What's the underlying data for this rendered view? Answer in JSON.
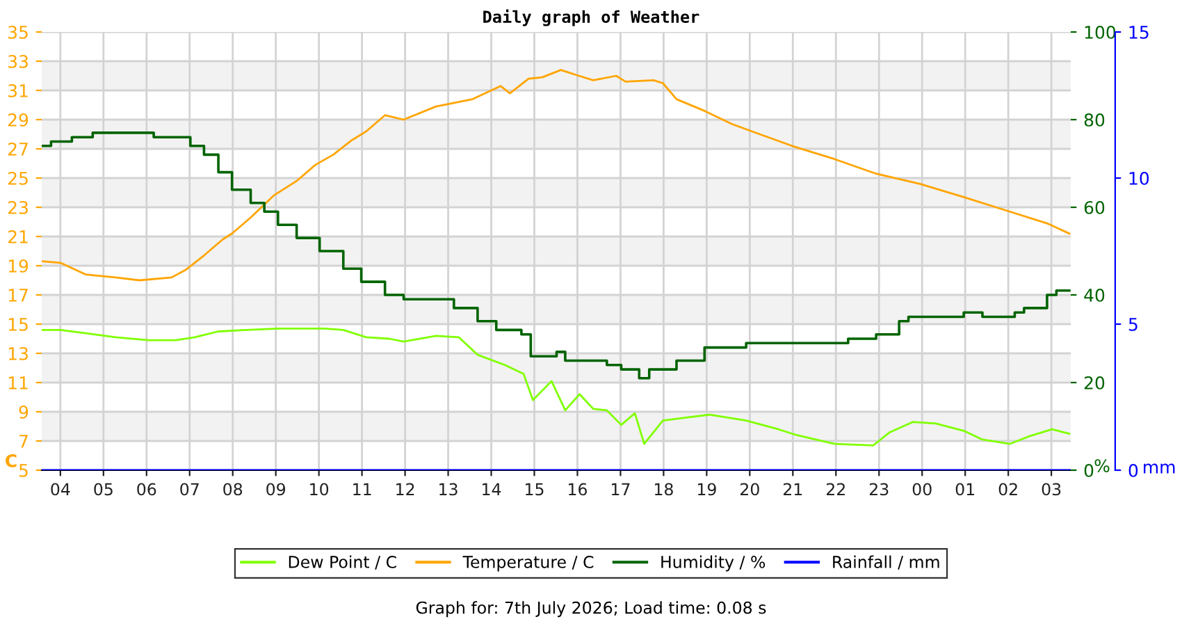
{
  "chart_data": {
    "type": "line",
    "title": "Daily graph of Weather",
    "ylabel": "C",
    "y2label": "%",
    "y3label": "mm",
    "annotations": [
      "Graph for: 7th July 2026; Load time: 0.08 s"
    ],
    "xlim": [
      "2026-07-06T03:34",
      "2026-07-07T03:27"
    ],
    "xticks": [
      {
        "value": "2026-07-06T04:00",
        "label": "04"
      },
      {
        "value": "2026-07-06T05:00",
        "label": "05"
      },
      {
        "value": "2026-07-06T06:00",
        "label": "06"
      },
      {
        "value": "2026-07-06T07:00",
        "label": "07"
      },
      {
        "value": "2026-07-06T08:00",
        "label": "08"
      },
      {
        "value": "2026-07-06T09:00",
        "label": "09"
      },
      {
        "value": "2026-07-06T10:00",
        "label": "10"
      },
      {
        "value": "2026-07-06T11:00",
        "label": "11"
      },
      {
        "value": "2026-07-06T12:00",
        "label": "12"
      },
      {
        "value": "2026-07-06T13:00",
        "label": "13"
      },
      {
        "value": "2026-07-06T14:00",
        "label": "14"
      },
      {
        "value": "2026-07-06T15:00",
        "label": "15"
      },
      {
        "value": "2026-07-06T16:00",
        "label": "16"
      },
      {
        "value": "2026-07-06T17:00",
        "label": "17"
      },
      {
        "value": "2026-07-06T18:00",
        "label": "18"
      },
      {
        "value": "2026-07-06T19:00",
        "label": "19"
      },
      {
        "value": "2026-07-06T20:00",
        "label": "20"
      },
      {
        "value": "2026-07-06T21:00",
        "label": "21"
      },
      {
        "value": "2026-07-06T22:00",
        "label": "22"
      },
      {
        "value": "2026-07-06T23:00",
        "label": "23"
      },
      {
        "value": "2026-07-07T00:00",
        "label": "00"
      },
      {
        "value": "2026-07-07T01:00",
        "label": "01"
      },
      {
        "value": "2026-07-07T02:00",
        "label": "02"
      },
      {
        "value": "2026-07-07T03:00",
        "label": "03"
      }
    ],
    "ylim": [
      5,
      35
    ],
    "yticks": [
      5,
      7,
      9,
      11,
      13,
      15,
      17,
      19,
      21,
      23,
      25,
      27,
      29,
      31,
      33,
      35
    ],
    "y2lim": [
      0,
      100
    ],
    "y2ticks": [
      0,
      20,
      40,
      60,
      80,
      100
    ],
    "y3lim": [
      0,
      15
    ],
    "y3ticks": [
      0,
      5,
      10,
      15
    ],
    "grid": true,
    "legend": "bottom",
    "series": [
      {
        "name": "Dew Point / C",
        "color": "#80ff00",
        "x": [
          "2026-07-06T03:35",
          "2026-07-06T04:00",
          "2026-07-06T04:32",
          "2026-07-06T05:17",
          "2026-07-06T06:03",
          "2026-07-06T06:41",
          "2026-07-06T07:07",
          "2026-07-06T07:40",
          "2026-07-06T08:19",
          "2026-07-06T09:04",
          "2026-07-06T10:08",
          "2026-07-06T10:34",
          "2026-07-06T11:06",
          "2026-07-06T11:38",
          "2026-07-06T11:58",
          "2026-07-06T12:43",
          "2026-07-06T13:15",
          "2026-07-06T13:41",
          "2026-07-06T14:19",
          "2026-07-06T14:45",
          "2026-07-06T14:58",
          "2026-07-06T15:24",
          "2026-07-06T15:43",
          "2026-07-06T16:03",
          "2026-07-06T16:22",
          "2026-07-06T16:41",
          "2026-07-06T17:01",
          "2026-07-06T17:20",
          "2026-07-06T17:33",
          "2026-07-06T17:59",
          "2026-07-06T18:31",
          "2026-07-06T19:04",
          "2026-07-06T19:55",
          "2026-07-06T20:40",
          "2026-07-06T20:59",
          "2026-07-06T21:06",
          "2026-07-06T21:58",
          "2026-07-06T22:52",
          "2026-07-06T23:15",
          "2026-07-06T23:47",
          "2026-07-07T00:19",
          "2026-07-07T00:58",
          "2026-07-07T01:24",
          "2026-07-07T02:02",
          "2026-07-07T02:28",
          "2026-07-07T03:01",
          "2026-07-07T03:25"
        ],
        "values": [
          14.6,
          14.6,
          14.4,
          14.1,
          13.9,
          13.9,
          14.1,
          14.5,
          14.6,
          14.7,
          14.7,
          14.6,
          14.1,
          14.0,
          13.8,
          14.2,
          14.1,
          12.9,
          12.2,
          11.6,
          9.8,
          11.1,
          9.1,
          10.2,
          9.2,
          9.1,
          8.1,
          8.9,
          6.8,
          8.4,
          8.6,
          8.8,
          8.4,
          7.8,
          7.5,
          7.4,
          6.8,
          6.7,
          7.6,
          8.3,
          8.2,
          7.7,
          7.1,
          6.8,
          7.3,
          7.8,
          7.5
        ]
      },
      {
        "name": "Temperature / C",
        "color": "#ffa500",
        "x": [
          "2026-07-06T03:35",
          "2026-07-06T04:00",
          "2026-07-06T04:35",
          "2026-07-06T05:17",
          "2026-07-06T05:50",
          "2026-07-06T06:35",
          "2026-07-06T06:54",
          "2026-07-06T07:20",
          "2026-07-06T07:46",
          "2026-07-06T07:59",
          "2026-07-06T08:25",
          "2026-07-06T08:57",
          "2026-07-06T09:29",
          "2026-07-06T09:55",
          "2026-07-06T10:20",
          "2026-07-06T10:46",
          "2026-07-06T11:06",
          "2026-07-06T11:32",
          "2026-07-06T11:58",
          "2026-07-06T12:43",
          "2026-07-06T13:34",
          "2026-07-06T14:13",
          "2026-07-06T14:26",
          "2026-07-06T14:52",
          "2026-07-06T15:11",
          "2026-07-06T15:37",
          "2026-07-06T16:02",
          "2026-07-06T16:22",
          "2026-07-06T16:54",
          "2026-07-06T17:07",
          "2026-07-06T17:46",
          "2026-07-06T17:59",
          "2026-07-06T18:18",
          "2026-07-06T18:57",
          "2026-07-06T19:35",
          "2026-07-06T20:14",
          "2026-07-06T20:59",
          "2026-07-06T21:58",
          "2026-07-06T22:56",
          "2026-07-06T23:57",
          "2026-07-07T00:58",
          "2026-07-07T01:56",
          "2026-07-07T02:54",
          "2026-07-07T03:25"
        ],
        "values": [
          19.3,
          19.2,
          18.4,
          18.2,
          18.0,
          18.2,
          18.7,
          19.7,
          20.8,
          21.2,
          22.3,
          23.8,
          24.8,
          25.9,
          26.6,
          27.6,
          28.2,
          29.3,
          29.0,
          29.9,
          30.4,
          31.3,
          30.8,
          31.8,
          31.9,
          32.4,
          32.0,
          31.7,
          32.0,
          31.6,
          31.7,
          31.5,
          30.4,
          29.6,
          28.7,
          28.0,
          27.2,
          26.3,
          25.3,
          24.6,
          23.7,
          22.8,
          21.9,
          21.2
        ]
      },
      {
        "name": "Humidity / %",
        "color": "#006400",
        "type": "step",
        "axis": "y2",
        "x": [
          "2026-07-06T03:35",
          "2026-07-06T03:47",
          "2026-07-06T04:16",
          "2026-07-06T04:45",
          "2026-07-06T06:09",
          "2026-07-06T06:10",
          "2026-07-06T06:48",
          "2026-07-06T07:01",
          "2026-07-06T07:20",
          "2026-07-06T07:40",
          "2026-07-06T07:59",
          "2026-07-06T08:25",
          "2026-07-06T08:44",
          "2026-07-06T09:03",
          "2026-07-06T09:29",
          "2026-07-06T10:01",
          "2026-07-06T10:34",
          "2026-07-06T10:59",
          "2026-07-06T11:32",
          "2026-07-06T11:58",
          "2026-07-06T12:30",
          "2026-07-06T13:08",
          "2026-07-06T13:41",
          "2026-07-06T14:07",
          "2026-07-06T14:42",
          "2026-07-06T14:55",
          "2026-07-06T15:31",
          "2026-07-06T15:43",
          "2026-07-06T16:09",
          "2026-07-06T16:41",
          "2026-07-06T17:01",
          "2026-07-06T17:26",
          "2026-07-06T17:40",
          "2026-07-06T18:05",
          "2026-07-06T18:18",
          "2026-07-06T18:57",
          "2026-07-06T19:55",
          "2026-07-06T20:40",
          "2026-07-06T22:17",
          "2026-07-06T22:56",
          "2026-07-06T23:28",
          "2026-07-06T23:41",
          "2026-07-07T00:58",
          "2026-07-07T01:24",
          "2026-07-07T02:09",
          "2026-07-07T02:22",
          "2026-07-07T02:54",
          "2026-07-07T03:07",
          "2026-07-07T03:25"
        ],
        "values": [
          74,
          75,
          76,
          77,
          77,
          76,
          76,
          74,
          72,
          68,
          64,
          61,
          59,
          56,
          53,
          50,
          46,
          43,
          40,
          39,
          39,
          37,
          34,
          32,
          31,
          26,
          27,
          25,
          25,
          24,
          23,
          21,
          23,
          23,
          25,
          28,
          29,
          29,
          30,
          31,
          34,
          35,
          36,
          35,
          36,
          37,
          40,
          41,
          41
        ]
      },
      {
        "name": "Rainfall / mm",
        "color": "#0000ff",
        "axis": "y3",
        "x": [
          "2026-07-06T03:34",
          "2026-07-07T03:27"
        ],
        "values": [
          0,
          0
        ]
      }
    ]
  }
}
